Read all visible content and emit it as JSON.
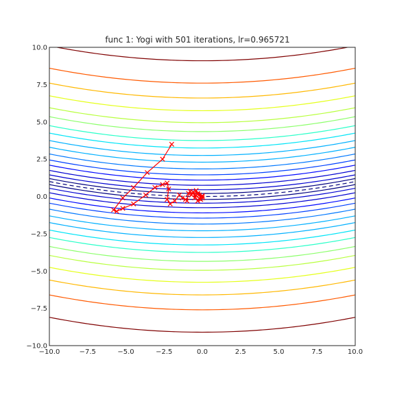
{
  "chart_data": {
    "type": "line",
    "title": "func 1: Yogi with 501 iterations, lr=0.965721",
    "xlabel": "",
    "ylabel": "",
    "xlim": [
      -10,
      10
    ],
    "ylim": [
      -10,
      10
    ],
    "x_ticks": [
      -10,
      -7.5,
      -5,
      -2.5,
      0,
      2.5,
      5,
      7.5,
      10
    ],
    "y_ticks": [
      -10,
      -7.5,
      -5,
      -2.5,
      0,
      2.5,
      5,
      7.5,
      10
    ],
    "x_tick_labels": [
      "−10.0",
      "−7.5",
      "−5.0",
      "−2.5",
      "0.0",
      "2.5",
      "5.0",
      "7.5",
      "10.0"
    ],
    "y_tick_labels": [
      "−10.0",
      "−7.5",
      "−5.0",
      "−2.5",
      "0.0",
      "2.5",
      "5.0",
      "7.5",
      "10.0"
    ],
    "grid": false,
    "contour": {
      "function": "z = 0.5*(y - 0.01*x^2)^2 (parabolic valley centred at y = 0)",
      "colormap": "jet",
      "levels_y_at_x0": [
        -9.1,
        -7.6,
        -6.6,
        -5.75,
        -4.95,
        -4.35,
        -3.75,
        -3.25,
        -2.75,
        -2.3,
        -1.85,
        -1.45,
        -1.1,
        -0.75,
        -0.45,
        -0.2,
        0.2,
        0.45,
        0.75,
        1.1,
        1.45,
        1.85,
        2.3,
        2.75,
        3.25,
        3.75,
        4.35,
        4.95,
        5.75,
        6.6,
        7.6,
        9.1
      ],
      "curvature": 0.01,
      "colors": [
        "#7f0000",
        "#cc0000",
        "#ff2a00",
        "#ff5a00",
        "#ff8c00",
        "#ffb800",
        "#ffe600",
        "#e5ff1a",
        "#b8ff3e",
        "#8cff6b",
        "#5cff9a",
        "#2affc9",
        "#00e4f7",
        "#00b0ff",
        "#0078ff",
        "#0040ff",
        "#0008ff",
        "#0000d1",
        "#000080"
      ]
    },
    "series": [
      {
        "color": "#ff0000",
        "marker": "x",
        "x": [
          -2.0,
          -2.6,
          -3.6,
          -4.5,
          -5.2,
          -5.8,
          -5.6,
          -5.2,
          -4.5,
          -3.7,
          -3.1,
          -2.6,
          -2.3,
          -2.2,
          -2.3,
          -2.1,
          -1.8,
          -1.5,
          -1.3,
          -1.1,
          -1.0,
          -0.9,
          -0.8,
          -0.7,
          -0.6,
          -0.5,
          -0.4,
          -0.3,
          -0.2,
          -0.1,
          0.0,
          -0.3,
          -0.6,
          -0.2,
          0.0,
          -0.3,
          0.0
        ],
        "y": [
          3.5,
          2.5,
          1.6,
          0.6,
          -0.1,
          -0.9,
          -1.0,
          -0.8,
          -0.5,
          0.1,
          0.6,
          0.8,
          0.9,
          0.5,
          -0.2,
          -0.5,
          -0.3,
          0.1,
          -0.1,
          -0.2,
          -0.3,
          0.2,
          0.35,
          0.1,
          0.3,
          -0.1,
          0.4,
          0.15,
          0.1,
          -0.2,
          -0.1,
          -0.3,
          0.3,
          -0.15,
          0.05,
          0.2,
          0.0
        ]
      }
    ]
  }
}
